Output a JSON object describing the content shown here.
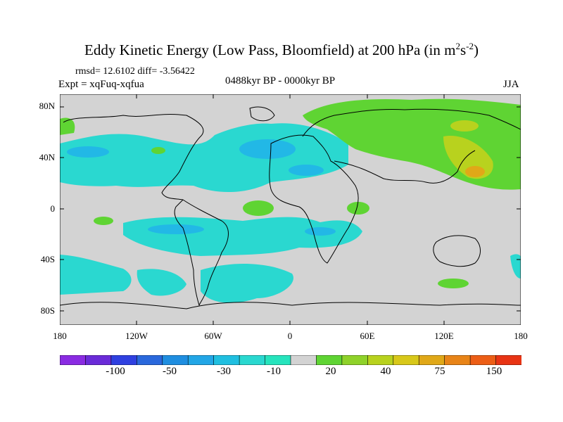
{
  "title": {
    "main": "Eddy Kinetic Energy (Low Pass, Bloomfield) at 200 hPa (in m",
    "sup1": "2",
    "mid": "s",
    "sup2": "-2",
    "close": ")"
  },
  "stats": "rmsd= 12.6102 diff= -3.56422",
  "experiment": "Expt = xqFuq-xqfua",
  "period": "0488kyr BP - 0000kyr BP",
  "season": "JJA",
  "lat_labels": [
    "80N",
    "40N",
    "0",
    "40S",
    "80S"
  ],
  "lon_labels": [
    "180",
    "120W",
    "60W",
    "0",
    "60E",
    "120E",
    "180"
  ],
  "colorbar": {
    "labels": [
      "-100",
      "-50",
      "-30",
      "-10",
      "20",
      "40",
      "75",
      "150"
    ],
    "colors": [
      "#8a2be2",
      "#6a2bd8",
      "#2f40e0",
      "#2a68dc",
      "#1f8ee0",
      "#22a6e6",
      "#20bfe0",
      "#2ad8d0",
      "#26e4bd",
      "#d3d3d3",
      "#5fd433",
      "#8fd22a",
      "#b8d21e",
      "#d8c81a",
      "#e0a818",
      "#e88418",
      "#ec5e16",
      "#e83414"
    ],
    "palette": {
      "land_coast": "#000000",
      "neutral": "#d3d3d3",
      "neg": "#2ad8d0",
      "neg_strong": "#22b8e6",
      "pos": "#5fd433",
      "pos_strong": "#b8d21e",
      "pos_max": "#e0a818"
    }
  }
}
